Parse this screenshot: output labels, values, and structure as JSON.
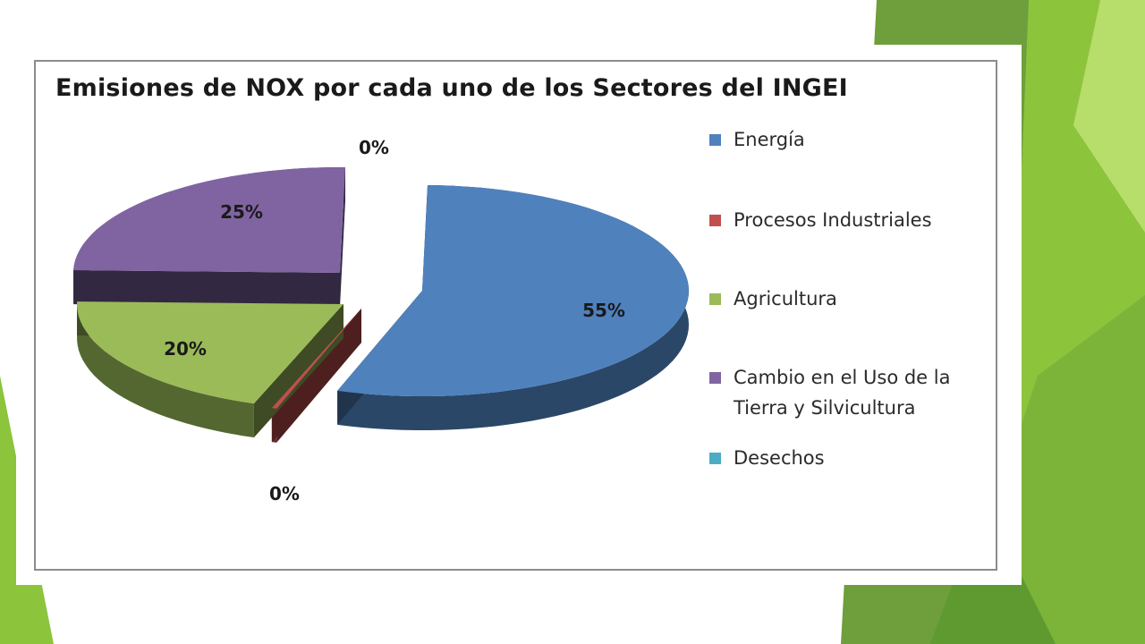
{
  "slide": {
    "accent_colors": [
      "#8dc63f",
      "#6aa84f",
      "#4e8c2b",
      "#a7d156"
    ]
  },
  "chart_data": {
    "type": "pie",
    "title": "Emisiones de NOX por cada uno de los Sectores  del INGEI",
    "categories": [
      "Energía",
      "Procesos Industriales",
      "Agricultura",
      "Cambio en el Uso de la Tierra y Silvicultura",
      "Desechos"
    ],
    "values": [
      55,
      0.3,
      20,
      25,
      0
    ],
    "data_labels": [
      "55%",
      "0%",
      "20%",
      "25%",
      "0%"
    ],
    "colors": [
      "#4f81bd",
      "#c0504d",
      "#9bbb59",
      "#8064a2",
      "#4bacc6"
    ],
    "legend_position": "right",
    "exploded": true,
    "three_d": true
  }
}
